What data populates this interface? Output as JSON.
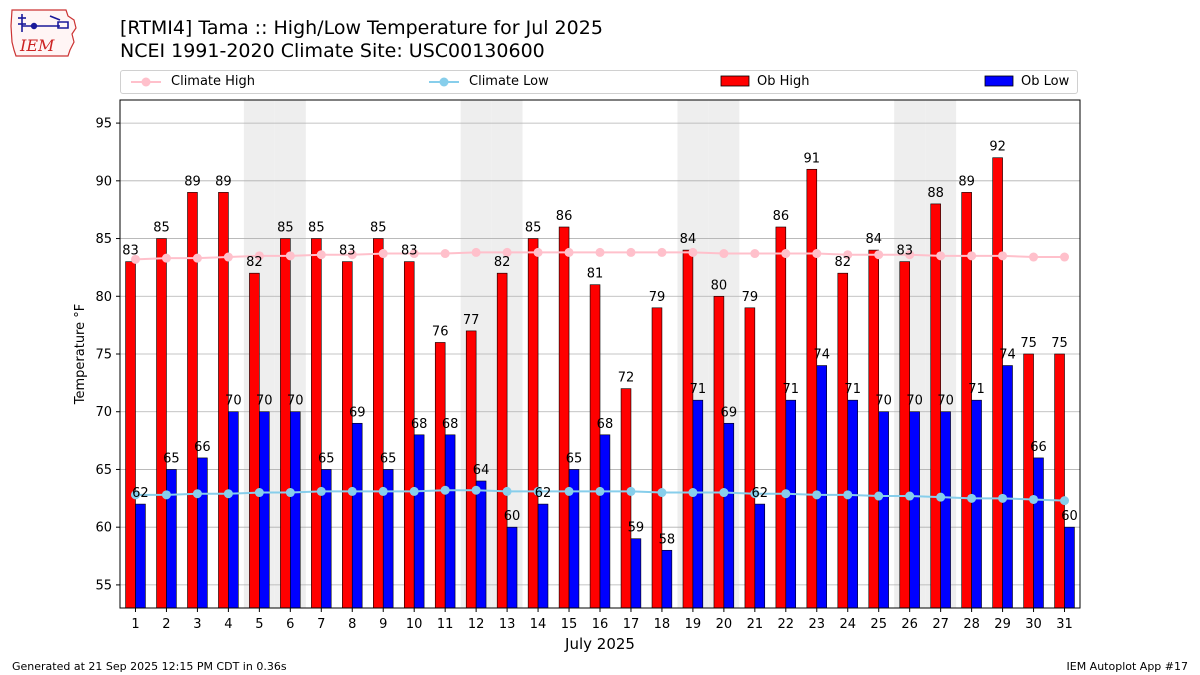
{
  "title_line1": "[RTMI4] Tama :: High/Low Temperature for Jul 2025",
  "title_line2": "NCEI 1991-2020 Climate Site: USC00130600",
  "logo_text": "IEM",
  "legend": {
    "climate_high": "Climate High",
    "climate_low": "Climate Low",
    "ob_high": "Ob High",
    "ob_low": "Ob Low"
  },
  "colors": {
    "ob_high": "#ff0000",
    "ob_low": "#0000ff",
    "climate_high": "#ffc0cb",
    "climate_low": "#87ceeb",
    "weekend_shade": "#eeeeee",
    "grid": "#b0b0b0"
  },
  "footer_left": "Generated at 21 Sep 2025 12:15 PM CDT in 0.36s",
  "footer_right": "IEM Autoplot App #17",
  "chart_data": {
    "type": "bar",
    "xlabel": "July 2025",
    "ylabel": "Temperature °F",
    "ylim": [
      53,
      97
    ],
    "yticks": [
      55,
      60,
      65,
      70,
      75,
      80,
      85,
      90,
      95
    ],
    "grid": true,
    "legend_position": "top",
    "categories": [
      "1",
      "2",
      "3",
      "4",
      "5",
      "6",
      "7",
      "8",
      "9",
      "10",
      "11",
      "12",
      "13",
      "14",
      "15",
      "16",
      "17",
      "18",
      "19",
      "20",
      "21",
      "22",
      "23",
      "24",
      "25",
      "26",
      "27",
      "28",
      "29",
      "30",
      "31"
    ],
    "shaded_days": [
      5,
      6,
      12,
      13,
      19,
      20,
      26,
      27
    ],
    "series": [
      {
        "name": "Ob High",
        "kind": "bar",
        "values": [
          83,
          85,
          89,
          89,
          82,
          85,
          85,
          83,
          85,
          83,
          76,
          77,
          82,
          85,
          86,
          81,
          72,
          79,
          84,
          80,
          79,
          86,
          91,
          82,
          84,
          83,
          88,
          89,
          92,
          75,
          75
        ]
      },
      {
        "name": "Ob Low",
        "kind": "bar",
        "values": [
          62,
          65,
          66,
          70,
          70,
          70,
          65,
          69,
          65,
          68,
          68,
          64,
          60,
          62,
          65,
          68,
          59,
          58,
          71,
          69,
          62,
          71,
          74,
          71,
          70,
          70,
          70,
          71,
          74,
          66,
          60
        ]
      },
      {
        "name": "Climate High",
        "kind": "line",
        "values": [
          83.2,
          83.3,
          83.3,
          83.4,
          83.5,
          83.5,
          83.6,
          83.6,
          83.7,
          83.7,
          83.7,
          83.8,
          83.8,
          83.8,
          83.8,
          83.8,
          83.8,
          83.8,
          83.8,
          83.7,
          83.7,
          83.7,
          83.7,
          83.6,
          83.6,
          83.6,
          83.5,
          83.5,
          83.5,
          83.4,
          83.4
        ]
      },
      {
        "name": "Climate Low",
        "kind": "line",
        "values": [
          62.8,
          62.8,
          62.9,
          62.9,
          63.0,
          63.0,
          63.1,
          63.1,
          63.1,
          63.1,
          63.2,
          63.2,
          63.1,
          63.1,
          63.1,
          63.1,
          63.1,
          63.0,
          63.0,
          63.0,
          62.9,
          62.9,
          62.8,
          62.8,
          62.7,
          62.7,
          62.6,
          62.5,
          62.5,
          62.4,
          62.3
        ]
      }
    ]
  }
}
